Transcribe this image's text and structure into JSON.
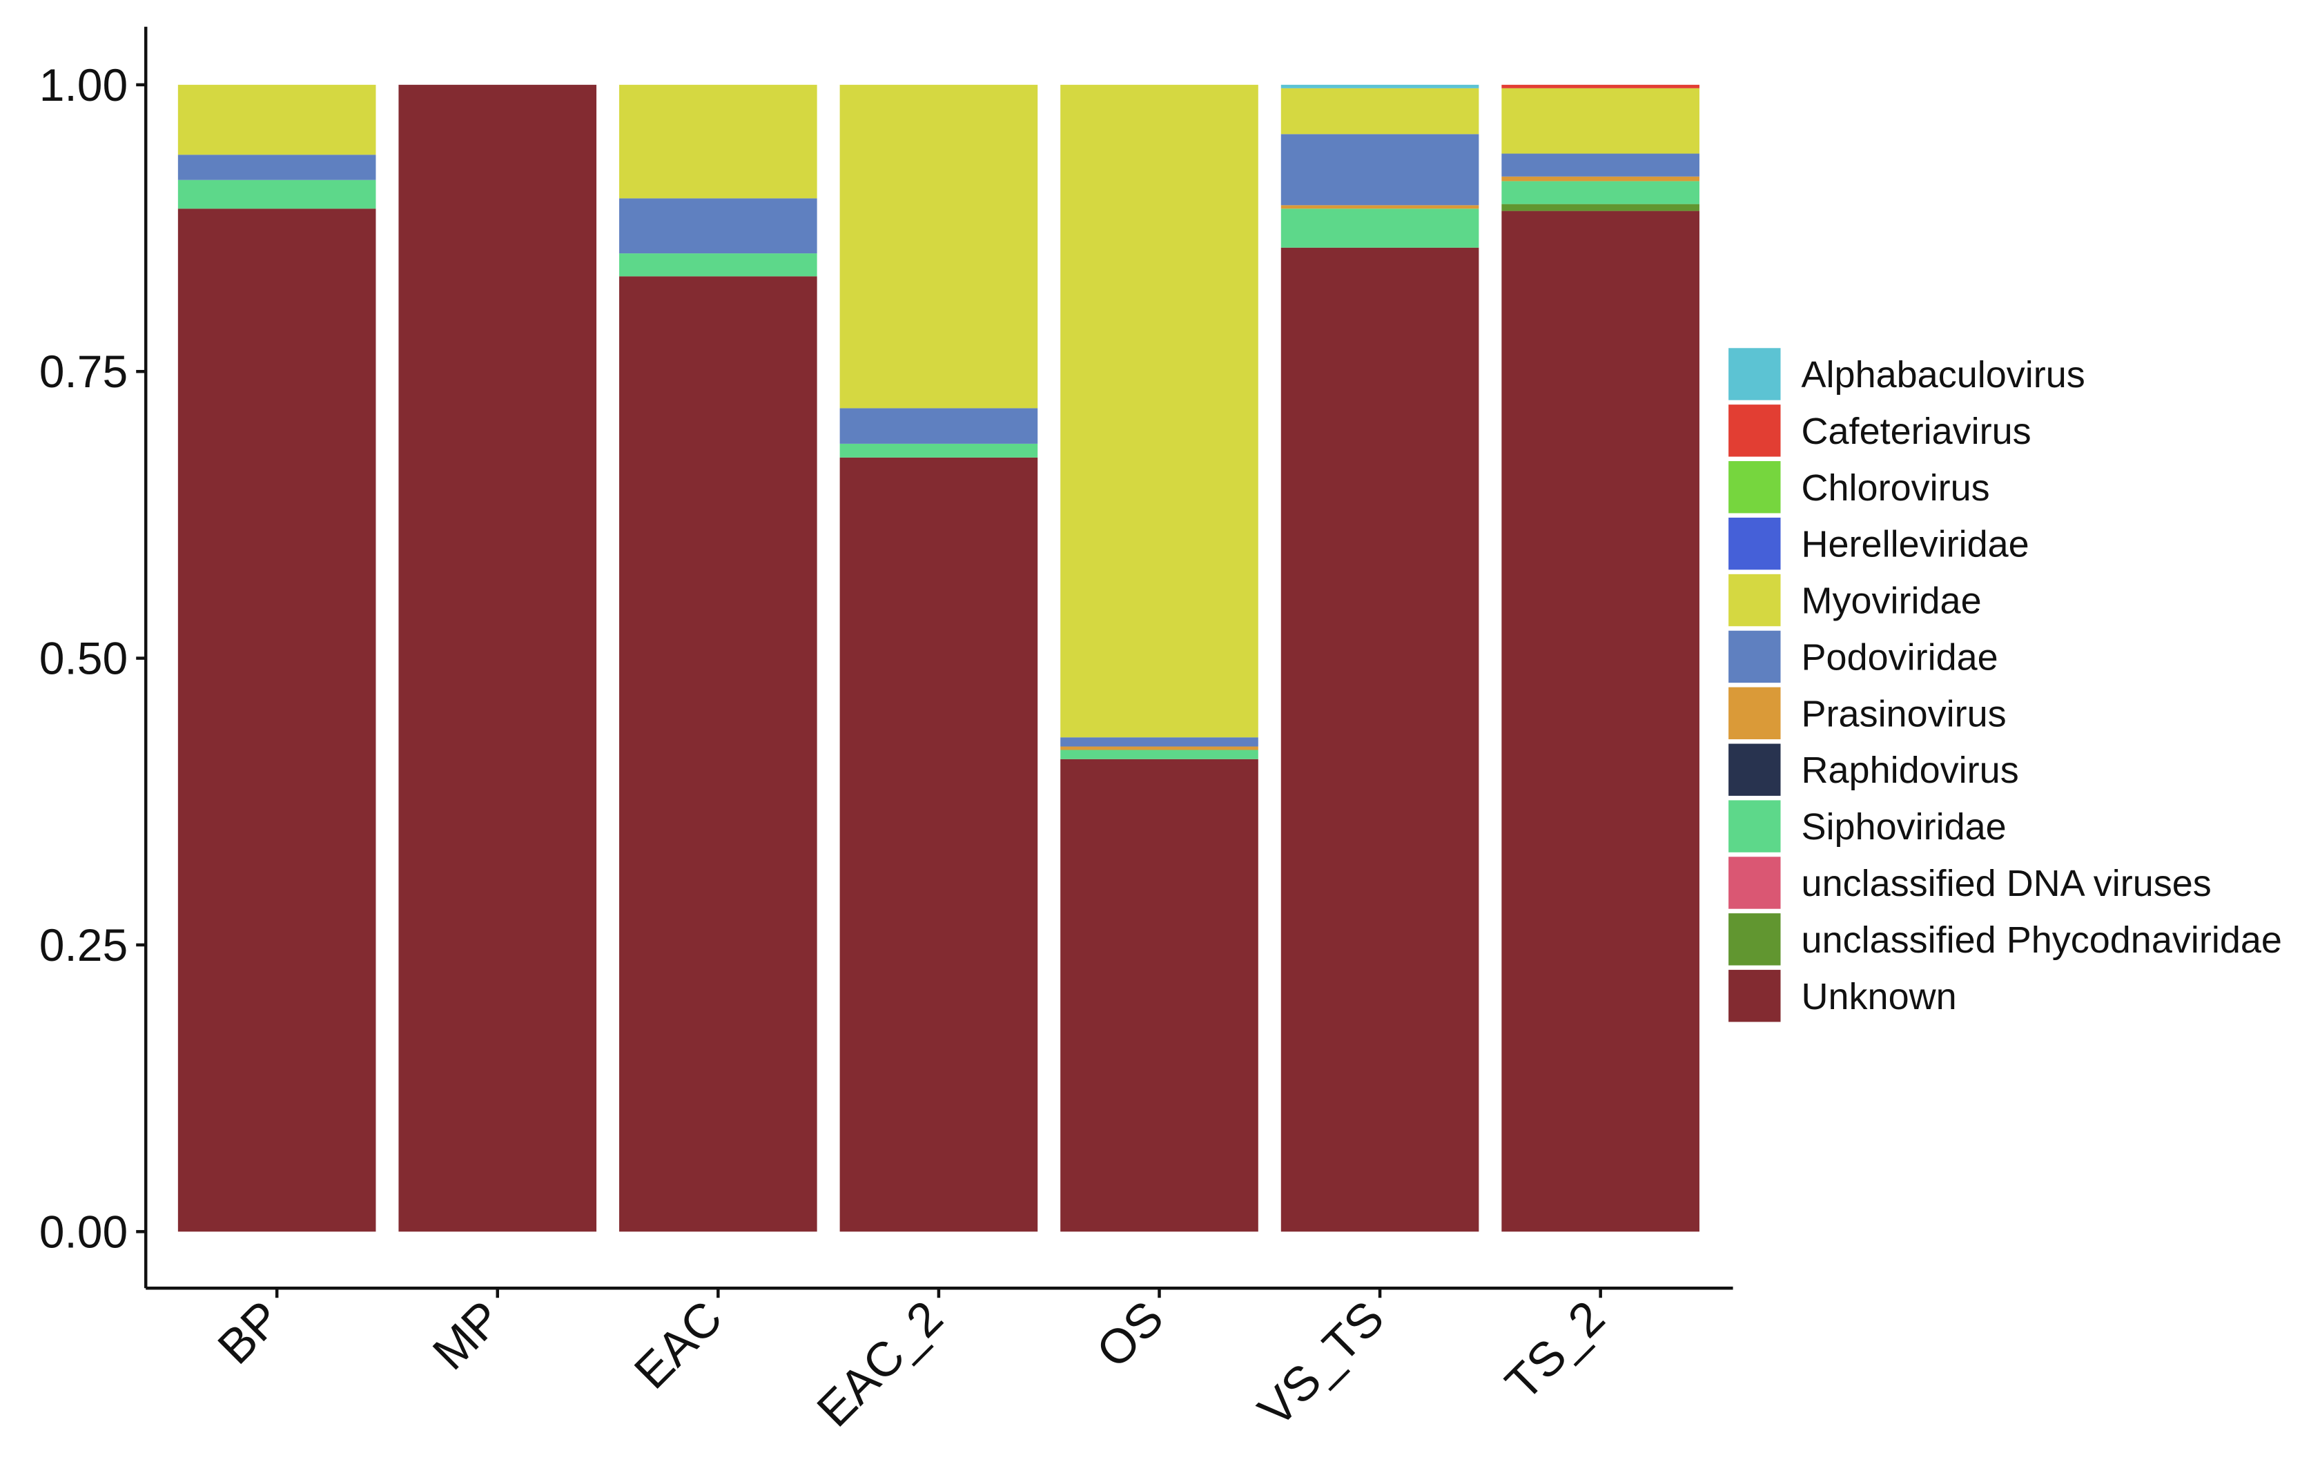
{
  "chart_data": {
    "type": "bar",
    "stacked": true,
    "categories": [
      "BP",
      "MP",
      "EAC",
      "EAC_2",
      "OS",
      "VS_TS",
      "TS_2"
    ],
    "ylim": [
      0,
      1
    ],
    "yticks": [
      "0.00",
      "0.25",
      "0.50",
      "0.75",
      "1.00"
    ],
    "ytick_values": [
      0,
      0.25,
      0.5,
      0.75,
      1.0
    ],
    "xlabel": "",
    "ylabel": "",
    "title": "",
    "legend_position": "right",
    "series": [
      {
        "name": "Unknown",
        "color": "#832b31",
        "values": [
          0.892,
          1.0,
          0.833,
          0.675,
          0.412,
          0.858,
          0.89
        ]
      },
      {
        "name": "unclassified Phycodnaviridae",
        "color": "#619630",
        "values": [
          0,
          0,
          0,
          0,
          0,
          0,
          0.006
        ]
      },
      {
        "name": "unclassified DNA viruses",
        "color": "#da5773",
        "values": [
          0,
          0,
          0,
          0,
          0,
          0,
          0
        ]
      },
      {
        "name": "Siphoviridae",
        "color": "#5dd88a",
        "values": [
          0.025,
          0,
          0.02,
          0.012,
          0.008,
          0.034,
          0.02
        ]
      },
      {
        "name": "Raphidovirus",
        "color": "#28334f",
        "values": [
          0,
          0,
          0,
          0,
          0,
          0,
          0
        ]
      },
      {
        "name": "Prasinovirus",
        "color": "#da9a38",
        "values": [
          0,
          0,
          0,
          0,
          0.003,
          0.003,
          0.004
        ]
      },
      {
        "name": "Podoviridae",
        "color": "#5f80c0",
        "values": [
          0.022,
          0,
          0.048,
          0.031,
          0.008,
          0.062,
          0.02
        ]
      },
      {
        "name": "Myoviridae",
        "color": "#d5d841",
        "values": [
          0.061,
          0,
          0.099,
          0.282,
          0.569,
          0.04,
          0.057
        ]
      },
      {
        "name": "Herelleviridae",
        "color": "#4560d8",
        "values": [
          0,
          0,
          0,
          0,
          0,
          0,
          0
        ]
      },
      {
        "name": "Chlorovirus",
        "color": "#76d63e",
        "values": [
          0,
          0,
          0,
          0,
          0,
          0,
          0
        ]
      },
      {
        "name": "Cafeteriavirus",
        "color": "#e23e33",
        "values": [
          0,
          0,
          0,
          0,
          0,
          0,
          0.003
        ]
      },
      {
        "name": "Alphabaculovirus",
        "color": "#5cc3d3",
        "values": [
          0,
          0,
          0,
          0,
          0,
          0.003,
          0
        ]
      }
    ],
    "legend": [
      {
        "label": "Alphabaculovirus",
        "color": "#5cc3d3"
      },
      {
        "label": "Cafeteriavirus",
        "color": "#e23e33"
      },
      {
        "label": "Chlorovirus",
        "color": "#76d63e"
      },
      {
        "label": "Herelleviridae",
        "color": "#4560d8"
      },
      {
        "label": "Myoviridae",
        "color": "#d5d841"
      },
      {
        "label": "Podoviridae",
        "color": "#5f80c0"
      },
      {
        "label": "Prasinovirus",
        "color": "#da9a38"
      },
      {
        "label": "Raphidovirus",
        "color": "#28334f"
      },
      {
        "label": "Siphoviridae",
        "color": "#5dd88a"
      },
      {
        "label": "unclassified DNA viruses",
        "color": "#da5773"
      },
      {
        "label": "unclassified Phycodnaviridae",
        "color": "#619630"
      },
      {
        "label": "Unknown",
        "color": "#832b31"
      }
    ]
  }
}
